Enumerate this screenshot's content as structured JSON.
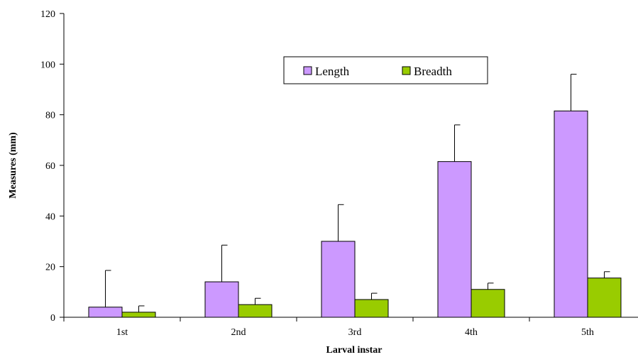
{
  "chart_data": {
    "type": "bar",
    "title": "",
    "xlabel": "Larval instar",
    "ylabel": "Measures (mm)",
    "ylim": [
      0,
      120
    ],
    "yticks": [
      0,
      20,
      40,
      60,
      80,
      100,
      120
    ],
    "categories": [
      "1st",
      "2nd",
      "3rd",
      "4th",
      "5th"
    ],
    "series": [
      {
        "name": "Length",
        "color": "#cc99ff",
        "values": [
          4,
          14,
          30,
          61.5,
          81.5
        ],
        "error": [
          14.5,
          14.5,
          14.5,
          14.5,
          14.5
        ]
      },
      {
        "name": "Breadth",
        "color": "#99cc00",
        "values": [
          2,
          5,
          7,
          11,
          15.5
        ],
        "error": [
          2.5,
          2.5,
          2.5,
          2.5,
          2.5
        ]
      }
    ],
    "legend_position": "top-center",
    "grid": false
  }
}
